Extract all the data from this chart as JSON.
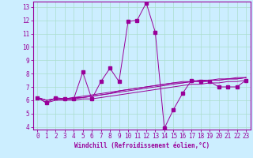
{
  "xlabel": "Windchill (Refroidissement éolien,°C)",
  "background_color": "#cceeff",
  "grid_color": "#aaddcc",
  "line_color": "#990099",
  "xlim": [
    -0.5,
    23.5
  ],
  "ylim": [
    3.8,
    13.4
  ],
  "xticks": [
    0,
    1,
    2,
    3,
    4,
    5,
    6,
    7,
    8,
    9,
    10,
    11,
    12,
    13,
    14,
    15,
    16,
    17,
    18,
    19,
    20,
    21,
    22,
    23
  ],
  "yticks": [
    4,
    5,
    6,
    7,
    8,
    9,
    10,
    11,
    12,
    13
  ],
  "series": [
    [
      6.2,
      5.8,
      6.2,
      6.1,
      6.1,
      8.1,
      6.1,
      7.4,
      8.4,
      7.4,
      11.9,
      12.0,
      13.3,
      11.1,
      3.9,
      5.3,
      6.5,
      7.5,
      7.4,
      7.4,
      7.0,
      7.0,
      7.0,
      7.5
    ],
    [
      6.2,
      6.0,
      6.1,
      6.1,
      6.1,
      6.2,
      6.3,
      6.4,
      6.5,
      6.6,
      6.7,
      6.8,
      6.9,
      7.0,
      7.1,
      7.2,
      7.3,
      7.4,
      7.4,
      7.5,
      7.5,
      7.6,
      7.6,
      7.7
    ],
    [
      6.2,
      6.0,
      6.1,
      6.1,
      6.2,
      6.2,
      6.3,
      6.4,
      6.5,
      6.7,
      6.8,
      6.9,
      7.0,
      7.1,
      7.2,
      7.3,
      7.3,
      7.4,
      7.5,
      7.5,
      7.5,
      7.6,
      7.6,
      7.7
    ],
    [
      6.2,
      6.0,
      6.1,
      6.1,
      6.2,
      6.3,
      6.4,
      6.5,
      6.6,
      6.7,
      6.8,
      6.9,
      7.0,
      7.1,
      7.2,
      7.3,
      7.4,
      7.4,
      7.5,
      7.5,
      7.6,
      7.6,
      7.7,
      7.7
    ],
    [
      6.2,
      5.8,
      6.0,
      6.0,
      6.0,
      6.1,
      6.1,
      6.2,
      6.3,
      6.4,
      6.5,
      6.6,
      6.7,
      6.8,
      6.9,
      7.0,
      7.1,
      7.2,
      7.2,
      7.3,
      7.3,
      7.4,
      7.4,
      7.5
    ]
  ],
  "tick_fontsize": 5.5,
  "xlabel_fontsize": 5.5,
  "lw": 0.7,
  "marker_size": 2.2
}
